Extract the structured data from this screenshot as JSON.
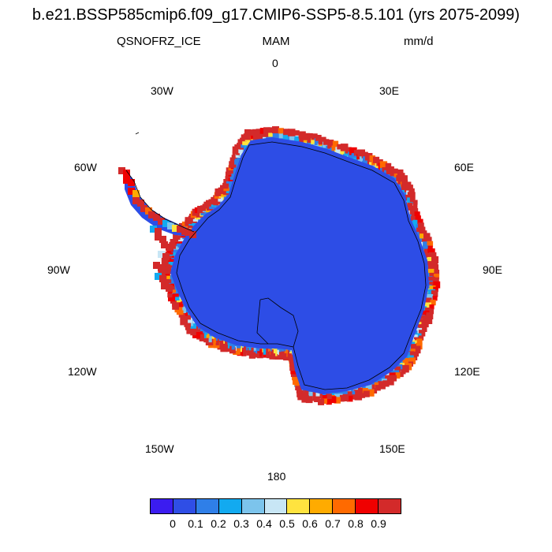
{
  "title": "b.e21.BSSP585cmip6.f09_g17.CMIP6-SSP5-8.5.101 (yrs 2075-2099)",
  "variable": "QSNOFRZ_ICE",
  "season": "MAM",
  "units": "mm/d",
  "longitude_labels": {
    "lon_0": "0",
    "lon_30e": "30E",
    "lon_60e": "60E",
    "lon_90e": "90E",
    "lon_120e": "120E",
    "lon_150e": "150E",
    "lon_180": "180",
    "lon_150w": "150W",
    "lon_120w": "120W",
    "lon_90w": "90W",
    "lon_60w": "60W",
    "lon_30w": "30W"
  },
  "colorbar": {
    "colors": [
      "#3b1cf0",
      "#2f4ee6",
      "#2f7fe8",
      "#12aaf0",
      "#7cc4ec",
      "#c8e6f5",
      "#ffe33f",
      "#ffab00",
      "#ff6a00",
      "#f00000",
      "#d32a2a"
    ],
    "labels": [
      "0",
      "0.1",
      "0.2",
      "0.3",
      "0.4",
      "0.5",
      "0.6",
      "0.7",
      "0.8",
      "0.9"
    ]
  },
  "map": {
    "projection": "south-polar-stereographic",
    "interior_color": "#2d4de6",
    "coast_colors": [
      "#d32a2a",
      "#f00000",
      "#ff6a00",
      "#ffab00",
      "#ffe33f",
      "#c8e6f5",
      "#7cc4ec",
      "#12aaf0",
      "#2f7fe8"
    ]
  }
}
